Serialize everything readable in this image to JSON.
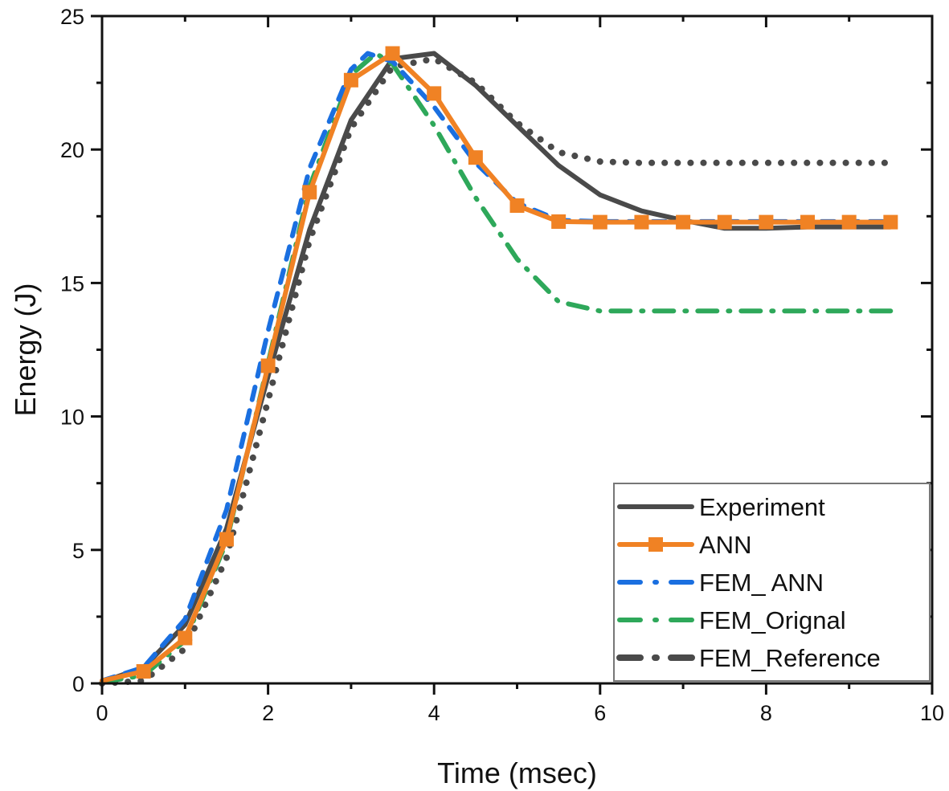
{
  "chart_data": {
    "type": "line",
    "title": "",
    "xlabel": "Time (msec)",
    "ylabel": "Energy (J)",
    "xlim": [
      0,
      10
    ],
    "ylim": [
      0,
      25
    ],
    "x_ticks": [
      0,
      2,
      4,
      6,
      8,
      10
    ],
    "x_tick_labels": [
      "0",
      "2",
      "4",
      "6",
      "8",
      "10"
    ],
    "x_minor_ticks": [
      1,
      3,
      5,
      7,
      9
    ],
    "y_ticks": [
      0,
      5,
      10,
      15,
      20,
      25
    ],
    "y_tick_labels": [
      "0",
      "5",
      "10",
      "15",
      "20",
      "25"
    ],
    "y_minor_ticks": [
      2.5,
      7.5,
      12.5,
      17.5,
      22.5
    ],
    "grid": false,
    "legend_position": "bottom-right",
    "series": [
      {
        "name": "Experiment",
        "color": "#4a4a4a",
        "style": "solid",
        "marker": "none",
        "x": [
          0,
          0.5,
          1,
          1.5,
          2,
          2.5,
          3,
          3.5,
          4,
          4.5,
          5,
          5.5,
          6,
          6.5,
          7,
          7.5,
          8,
          8.5,
          9,
          9.5
        ],
        "y": [
          0.05,
          0.6,
          2.2,
          5.8,
          11.5,
          17.0,
          21.1,
          23.4,
          23.6,
          22.4,
          20.9,
          19.4,
          18.3,
          17.7,
          17.35,
          17.05,
          17.05,
          17.1,
          17.1,
          17.1
        ]
      },
      {
        "name": "ANN",
        "color": "#f08224",
        "style": "solid",
        "marker": "square",
        "x": [
          0,
          0.5,
          1,
          1.5,
          2,
          2.5,
          3,
          3.5,
          4,
          4.5,
          5,
          5.5,
          6,
          6.5,
          7,
          7.5,
          8,
          8.5,
          9,
          9.5
        ],
        "y": [
          0.1,
          0.45,
          1.7,
          5.4,
          11.9,
          18.4,
          22.6,
          23.6,
          22.1,
          19.7,
          17.9,
          17.3,
          17.28,
          17.28,
          17.28,
          17.28,
          17.28,
          17.28,
          17.28,
          17.28
        ]
      },
      {
        "name": "FEM_ ANN",
        "color": "#1a6fe0",
        "style": "dashed",
        "marker": "none",
        "x": [
          0,
          0.5,
          1,
          1.5,
          2,
          2.5,
          3,
          3.2,
          3.5,
          4,
          4.5,
          5,
          5.5,
          6,
          6.5,
          7,
          7.5,
          8,
          8.5,
          9,
          9.5
        ],
        "y": [
          0.1,
          0.6,
          2.4,
          6.5,
          13.2,
          19.3,
          23.0,
          23.6,
          23.3,
          21.6,
          19.5,
          18.0,
          17.35,
          17.3,
          17.3,
          17.3,
          17.3,
          17.3,
          17.3,
          17.3,
          17.3
        ]
      },
      {
        "name": "FEM_Orignal",
        "color": "#2ea85a",
        "style": "dashdot",
        "marker": "none",
        "x": [
          0,
          0.5,
          1,
          1.5,
          2,
          2.5,
          3,
          3.3,
          3.5,
          4,
          4.5,
          5,
          5.5,
          6,
          6.5,
          7,
          7.5,
          8,
          8.5,
          9,
          9.5
        ],
        "y": [
          0.05,
          0.3,
          1.6,
          5.3,
          12.0,
          18.6,
          22.8,
          23.6,
          23.2,
          20.9,
          18.2,
          15.9,
          14.3,
          13.95,
          13.95,
          13.95,
          13.95,
          13.95,
          13.95,
          13.95,
          13.95
        ]
      },
      {
        "name": "FEM_Reference",
        "color": "#4a4a4a",
        "style": "dotted",
        "marker": "none",
        "x": [
          0,
          0.5,
          1,
          1.5,
          2,
          2.5,
          3,
          3.5,
          4,
          4.5,
          5,
          5.5,
          6,
          6.5,
          7,
          7.5,
          8,
          8.5,
          9,
          9.5
        ],
        "y": [
          0.0,
          0.1,
          1.3,
          4.7,
          10.6,
          16.6,
          20.8,
          23.1,
          23.4,
          22.5,
          21.0,
          19.9,
          19.55,
          19.5,
          19.5,
          19.5,
          19.5,
          19.5,
          19.5,
          19.5
        ]
      }
    ]
  }
}
